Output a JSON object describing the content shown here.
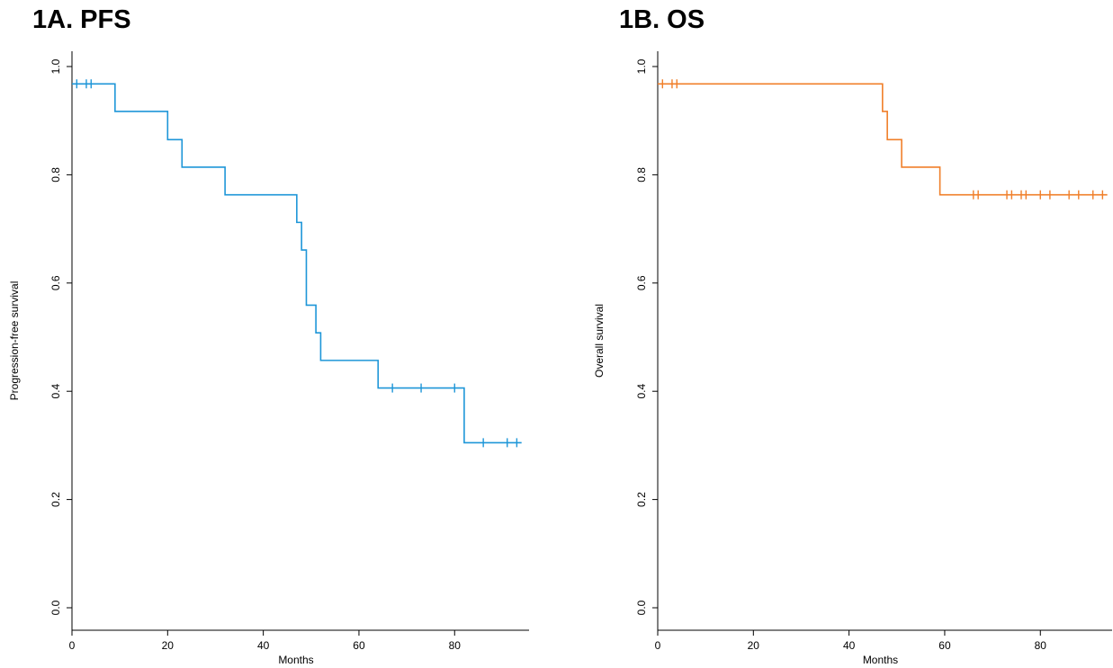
{
  "chart_data": [
    {
      "type": "line",
      "title": "1A. PFS",
      "xlabel": "Months",
      "ylabel": "Progression-free survival",
      "xlim": [
        0,
        95
      ],
      "ylim": [
        0,
        1.0
      ],
      "x_ticks": [
        0,
        20,
        40,
        60,
        80
      ],
      "y_ticks": [
        0.0,
        0.2,
        0.4,
        0.6,
        0.8,
        1.0
      ],
      "x_tick_labels": [
        "0",
        "20",
        "40",
        "60",
        "80"
      ],
      "y_tick_labels": [
        "0.0",
        "0.2",
        "0.4",
        "0.6",
        "0.8",
        "1.0"
      ],
      "grid": false,
      "color": "#1e96d8",
      "series": [
        {
          "step_x": [
            0,
            9,
            20,
            23,
            32,
            47,
            48,
            49,
            51,
            52,
            64,
            82,
            94
          ],
          "step_y": [
            0.968,
            0.917,
            0.865,
            0.814,
            0.763,
            0.712,
            0.661,
            0.559,
            0.508,
            0.457,
            0.406,
            0.305,
            0.305
          ],
          "censor_x": [
            1,
            3,
            4,
            67,
            73,
            80,
            86,
            91,
            93
          ],
          "censor_y": [
            0.968,
            0.968,
            0.968,
            0.406,
            0.406,
            0.406,
            0.305,
            0.305,
            0.305
          ]
        }
      ]
    },
    {
      "type": "line",
      "title": "1B. OS",
      "xlabel": "Months",
      "ylabel": "Overall survival",
      "xlim": [
        0,
        95
      ],
      "ylim": [
        0,
        1.0
      ],
      "x_ticks": [
        0,
        20,
        40,
        60,
        80
      ],
      "y_ticks": [
        0.0,
        0.2,
        0.4,
        0.6,
        0.8,
        1.0
      ],
      "x_tick_labels": [
        "0",
        "20",
        "40",
        "60",
        "80"
      ],
      "y_tick_labels": [
        "0.0",
        "0.2",
        "0.4",
        "0.6",
        "0.8",
        "1.0"
      ],
      "grid": false,
      "color": "#f07f2a",
      "series": [
        {
          "step_x": [
            0,
            47,
            48,
            51,
            59,
            94
          ],
          "step_y": [
            0.968,
            0.917,
            0.865,
            0.814,
            0.763,
            0.763
          ],
          "censor_x": [
            1,
            3,
            4,
            66,
            67,
            73,
            74,
            76,
            77,
            80,
            82,
            86,
            88,
            91,
            93
          ],
          "censor_y": [
            0.968,
            0.968,
            0.968,
            0.763,
            0.763,
            0.763,
            0.763,
            0.763,
            0.763,
            0.763,
            0.763,
            0.763,
            0.763,
            0.763,
            0.763
          ]
        }
      ]
    }
  ]
}
